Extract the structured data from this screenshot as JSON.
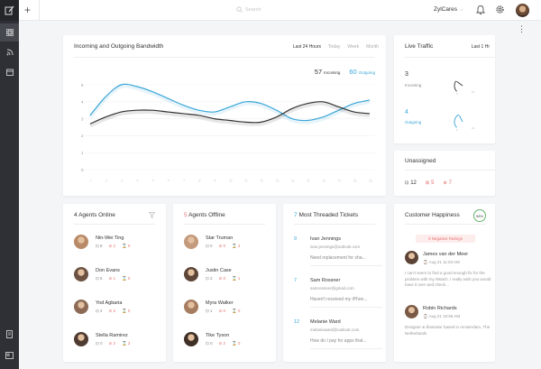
{
  "topbar": {
    "search_placeholder": "Search",
    "brand": "ZylCares",
    "brand_chevron": "⌵",
    "plus": "+",
    "more": "⋮"
  },
  "bandwidth": {
    "title": "Incoming and Outgoing Bandwidth",
    "tabs": [
      "Last 24 Hours",
      "Today",
      "Week",
      "Month"
    ],
    "incoming_value": "57",
    "incoming_label": "Incoming",
    "outgoing_value": "60",
    "outgoing_label": "Outgoing"
  },
  "chart_data": {
    "type": "line",
    "title": "Incoming and Outgoing Bandwidth",
    "ylim": [
      0,
      5
    ],
    "yticks": [
      "5",
      "4",
      "3",
      "2",
      "1",
      "0"
    ],
    "x": [
      "1",
      "2",
      "3",
      "4",
      "5",
      "6",
      "7",
      "8",
      "9",
      "10",
      "11",
      "12",
      "13",
      "14",
      "15",
      "16",
      "17",
      "18",
      "19"
    ],
    "series": [
      {
        "name": "Outgoing",
        "color": "#3aa6d8",
        "values": [
          3.2,
          4.3,
          5.0,
          4.9,
          4.6,
          4.2,
          3.8,
          3.5,
          3.4,
          3.7,
          4.0,
          3.9,
          3.5,
          3.0,
          2.9,
          3.1,
          3.5,
          3.9,
          4.1
        ]
      },
      {
        "name": "Incoming",
        "color": "#333333",
        "values": [
          2.7,
          3.1,
          3.4,
          3.5,
          3.5,
          3.4,
          3.3,
          3.2,
          3.0,
          2.9,
          2.8,
          2.8,
          3.1,
          3.6,
          3.9,
          4.0,
          3.7,
          3.4,
          3.3
        ]
      }
    ]
  },
  "live_traffic": {
    "title": "Live Traffic",
    "period": "Last 1 Hr",
    "incoming_value": "3",
    "incoming_label": "Incoming",
    "outgoing_value": "4",
    "outgoing_label": "Outgoing",
    "gauge_min": "0",
    "gauge_max": "10",
    "incoming_level": 0.3,
    "outgoing_level": 0.4
  },
  "unassigned": {
    "title": "Unassigned",
    "stats": [
      {
        "icon": "⊡",
        "value": "12",
        "color": "#333333"
      },
      {
        "icon": "⊠",
        "value": "5",
        "color": "#e57373"
      },
      {
        "icon": "⊗",
        "value": "7",
        "color": "#e57373"
      }
    ]
  },
  "agents_online": {
    "count": "4",
    "title": "Agents Online",
    "agents": [
      {
        "name": "Nin-Wei Ting",
        "a": "8",
        "b": "2",
        "c": "0"
      },
      {
        "name": "Don Evans",
        "a": "6",
        "b": "1",
        "c": "0"
      },
      {
        "name": "Yod Agbaria",
        "a": "4",
        "b": "2",
        "c": "0"
      },
      {
        "name": "Stella Ramirez",
        "a": "0",
        "b": "2",
        "c": "2"
      }
    ]
  },
  "agents_offline": {
    "count": "5",
    "title": "Agents Offline",
    "agents": [
      {
        "name": "Star Truman",
        "a": "0",
        "b": "0",
        "c": "2"
      },
      {
        "name": "Justin Case",
        "a": "2",
        "b": "0",
        "c": "1"
      },
      {
        "name": "Myra Walker",
        "a": "1",
        "b": "0",
        "c": "0"
      },
      {
        "name": "Tike Tyson",
        "a": "0",
        "b": "2",
        "c": "0"
      }
    ]
  },
  "threaded": {
    "count": "7",
    "title": "Most Threaded Tickets",
    "tickets": [
      {
        "n": "9",
        "name": "Ivan Jennings",
        "email": "ivan.jennings@outlook.com",
        "msg": "Need replacement for sha..."
      },
      {
        "n": "7",
        "name": "Sam Rossner",
        "email": "samrossner@gmail.com",
        "msg": "Haven't received my iPhon..."
      },
      {
        "n": "12",
        "name": "Melanie Ward",
        "email": "melanieward@outlook.com",
        "msg": "How do I pay for apps that..."
      }
    ]
  },
  "happiness": {
    "title": "Customer Happiness",
    "percent": "98%",
    "negative": "3 Negative Ratings",
    "reviews": [
      {
        "name": "James van der Meer",
        "date": "Aug 21 11:03 AM",
        "text": "I can't seem to find a good enough fix for the problem with my iWatch. I really wish you would have it over and check..."
      },
      {
        "name": "Robin Richards",
        "date": "Aug 21 10:59 AM",
        "text": "Designer & illustrator based in Amsterdam, The Netherlands"
      }
    ]
  }
}
